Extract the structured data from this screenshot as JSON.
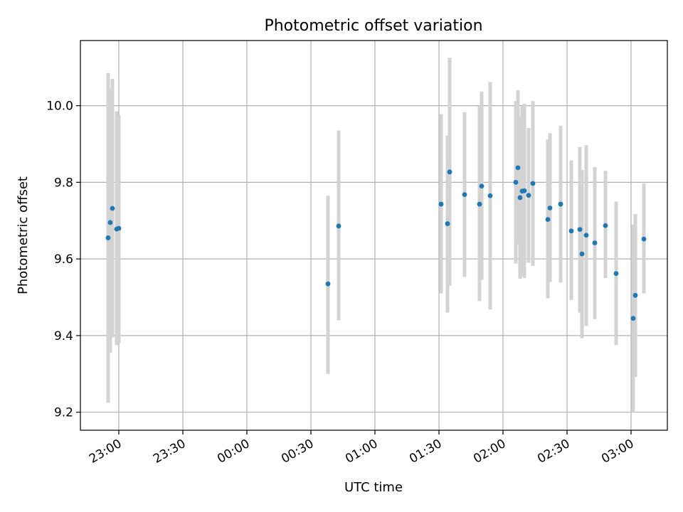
{
  "chart_data": {
    "type": "scatter",
    "title": "Photometric offset variation",
    "xlabel": "UTC time",
    "ylabel": "Photometric offset",
    "xlim_minutes_from_2300": [
      -18,
      257
    ],
    "ylim": [
      9.153,
      10.17
    ],
    "grid": true,
    "x_ticks": [
      "23:00",
      "23:30",
      "00:00",
      "00:30",
      "01:00",
      "01:30",
      "02:00",
      "02:30",
      "03:00"
    ],
    "y_ticks": [
      9.2,
      9.4,
      9.6,
      9.8,
      10.0
    ],
    "colors": {
      "point": "#1f77b4",
      "errorbar": "#d3d3d3",
      "grid": "#b0b0b0"
    },
    "points": [
      {
        "t": "22:55",
        "y": 9.655,
        "lo": 9.225,
        "hi": 10.085
      },
      {
        "t": "22:56",
        "y": 9.695,
        "lo": 9.355,
        "hi": 10.045
      },
      {
        "t": "22:57",
        "y": 9.732,
        "lo": 9.395,
        "hi": 10.07
      },
      {
        "t": "22:59",
        "y": 9.678,
        "lo": 9.375,
        "hi": 9.985
      },
      {
        "t": "23:00",
        "y": 9.68,
        "lo": 9.38,
        "hi": 9.975
      },
      {
        "t": "00:38",
        "y": 9.535,
        "lo": 9.3,
        "hi": 9.765
      },
      {
        "t": "00:43",
        "y": 9.686,
        "lo": 9.44,
        "hi": 9.935
      },
      {
        "t": "01:31",
        "y": 9.743,
        "lo": 9.51,
        "hi": 9.978
      },
      {
        "t": "01:34",
        "y": 9.692,
        "lo": 9.46,
        "hi": 9.922
      },
      {
        "t": "01:35",
        "y": 9.827,
        "lo": 9.53,
        "hi": 10.125
      },
      {
        "t": "01:42",
        "y": 9.768,
        "lo": 9.553,
        "hi": 9.983
      },
      {
        "t": "01:49",
        "y": 9.743,
        "lo": 9.49,
        "hi": 9.998
      },
      {
        "t": "01:50",
        "y": 9.79,
        "lo": 9.545,
        "hi": 10.037
      },
      {
        "t": "01:54",
        "y": 9.765,
        "lo": 9.468,
        "hi": 10.062
      },
      {
        "t": "02:06",
        "y": 9.8,
        "lo": 9.588,
        "hi": 10.012
      },
      {
        "t": "02:07",
        "y": 9.838,
        "lo": 9.638,
        "hi": 10.04
      },
      {
        "t": "02:08",
        "y": 9.76,
        "lo": 9.548,
        "hi": 9.972
      },
      {
        "t": "02:09",
        "y": 9.777,
        "lo": 9.555,
        "hi": 9.998
      },
      {
        "t": "02:10",
        "y": 9.778,
        "lo": 9.55,
        "hi": 10.005
      },
      {
        "t": "02:12",
        "y": 9.766,
        "lo": 9.59,
        "hi": 9.942
      },
      {
        "t": "02:14",
        "y": 9.797,
        "lo": 9.582,
        "hi": 10.012
      },
      {
        "t": "02:21",
        "y": 9.703,
        "lo": 9.497,
        "hi": 9.912
      },
      {
        "t": "02:22",
        "y": 9.733,
        "lo": 9.54,
        "hi": 9.928
      },
      {
        "t": "02:27",
        "y": 9.743,
        "lo": 9.538,
        "hi": 9.948
      },
      {
        "t": "02:32",
        "y": 9.673,
        "lo": 9.493,
        "hi": 9.857
      },
      {
        "t": "02:36",
        "y": 9.677,
        "lo": 9.46,
        "hi": 9.892
      },
      {
        "t": "02:37",
        "y": 9.613,
        "lo": 9.393,
        "hi": 9.832
      },
      {
        "t": "02:39",
        "y": 9.662,
        "lo": 9.425,
        "hi": 9.897
      },
      {
        "t": "02:43",
        "y": 9.642,
        "lo": 9.443,
        "hi": 9.84
      },
      {
        "t": "02:48",
        "y": 9.687,
        "lo": 9.55,
        "hi": 9.83
      },
      {
        "t": "02:53",
        "y": 9.562,
        "lo": 9.375,
        "hi": 9.75
      },
      {
        "t": "03:01",
        "y": 9.445,
        "lo": 9.2,
        "hi": 9.69
      },
      {
        "t": "03:02",
        "y": 9.505,
        "lo": 9.292,
        "hi": 9.717
      },
      {
        "t": "03:06",
        "y": 9.652,
        "lo": 9.51,
        "hi": 9.797
      }
    ]
  }
}
